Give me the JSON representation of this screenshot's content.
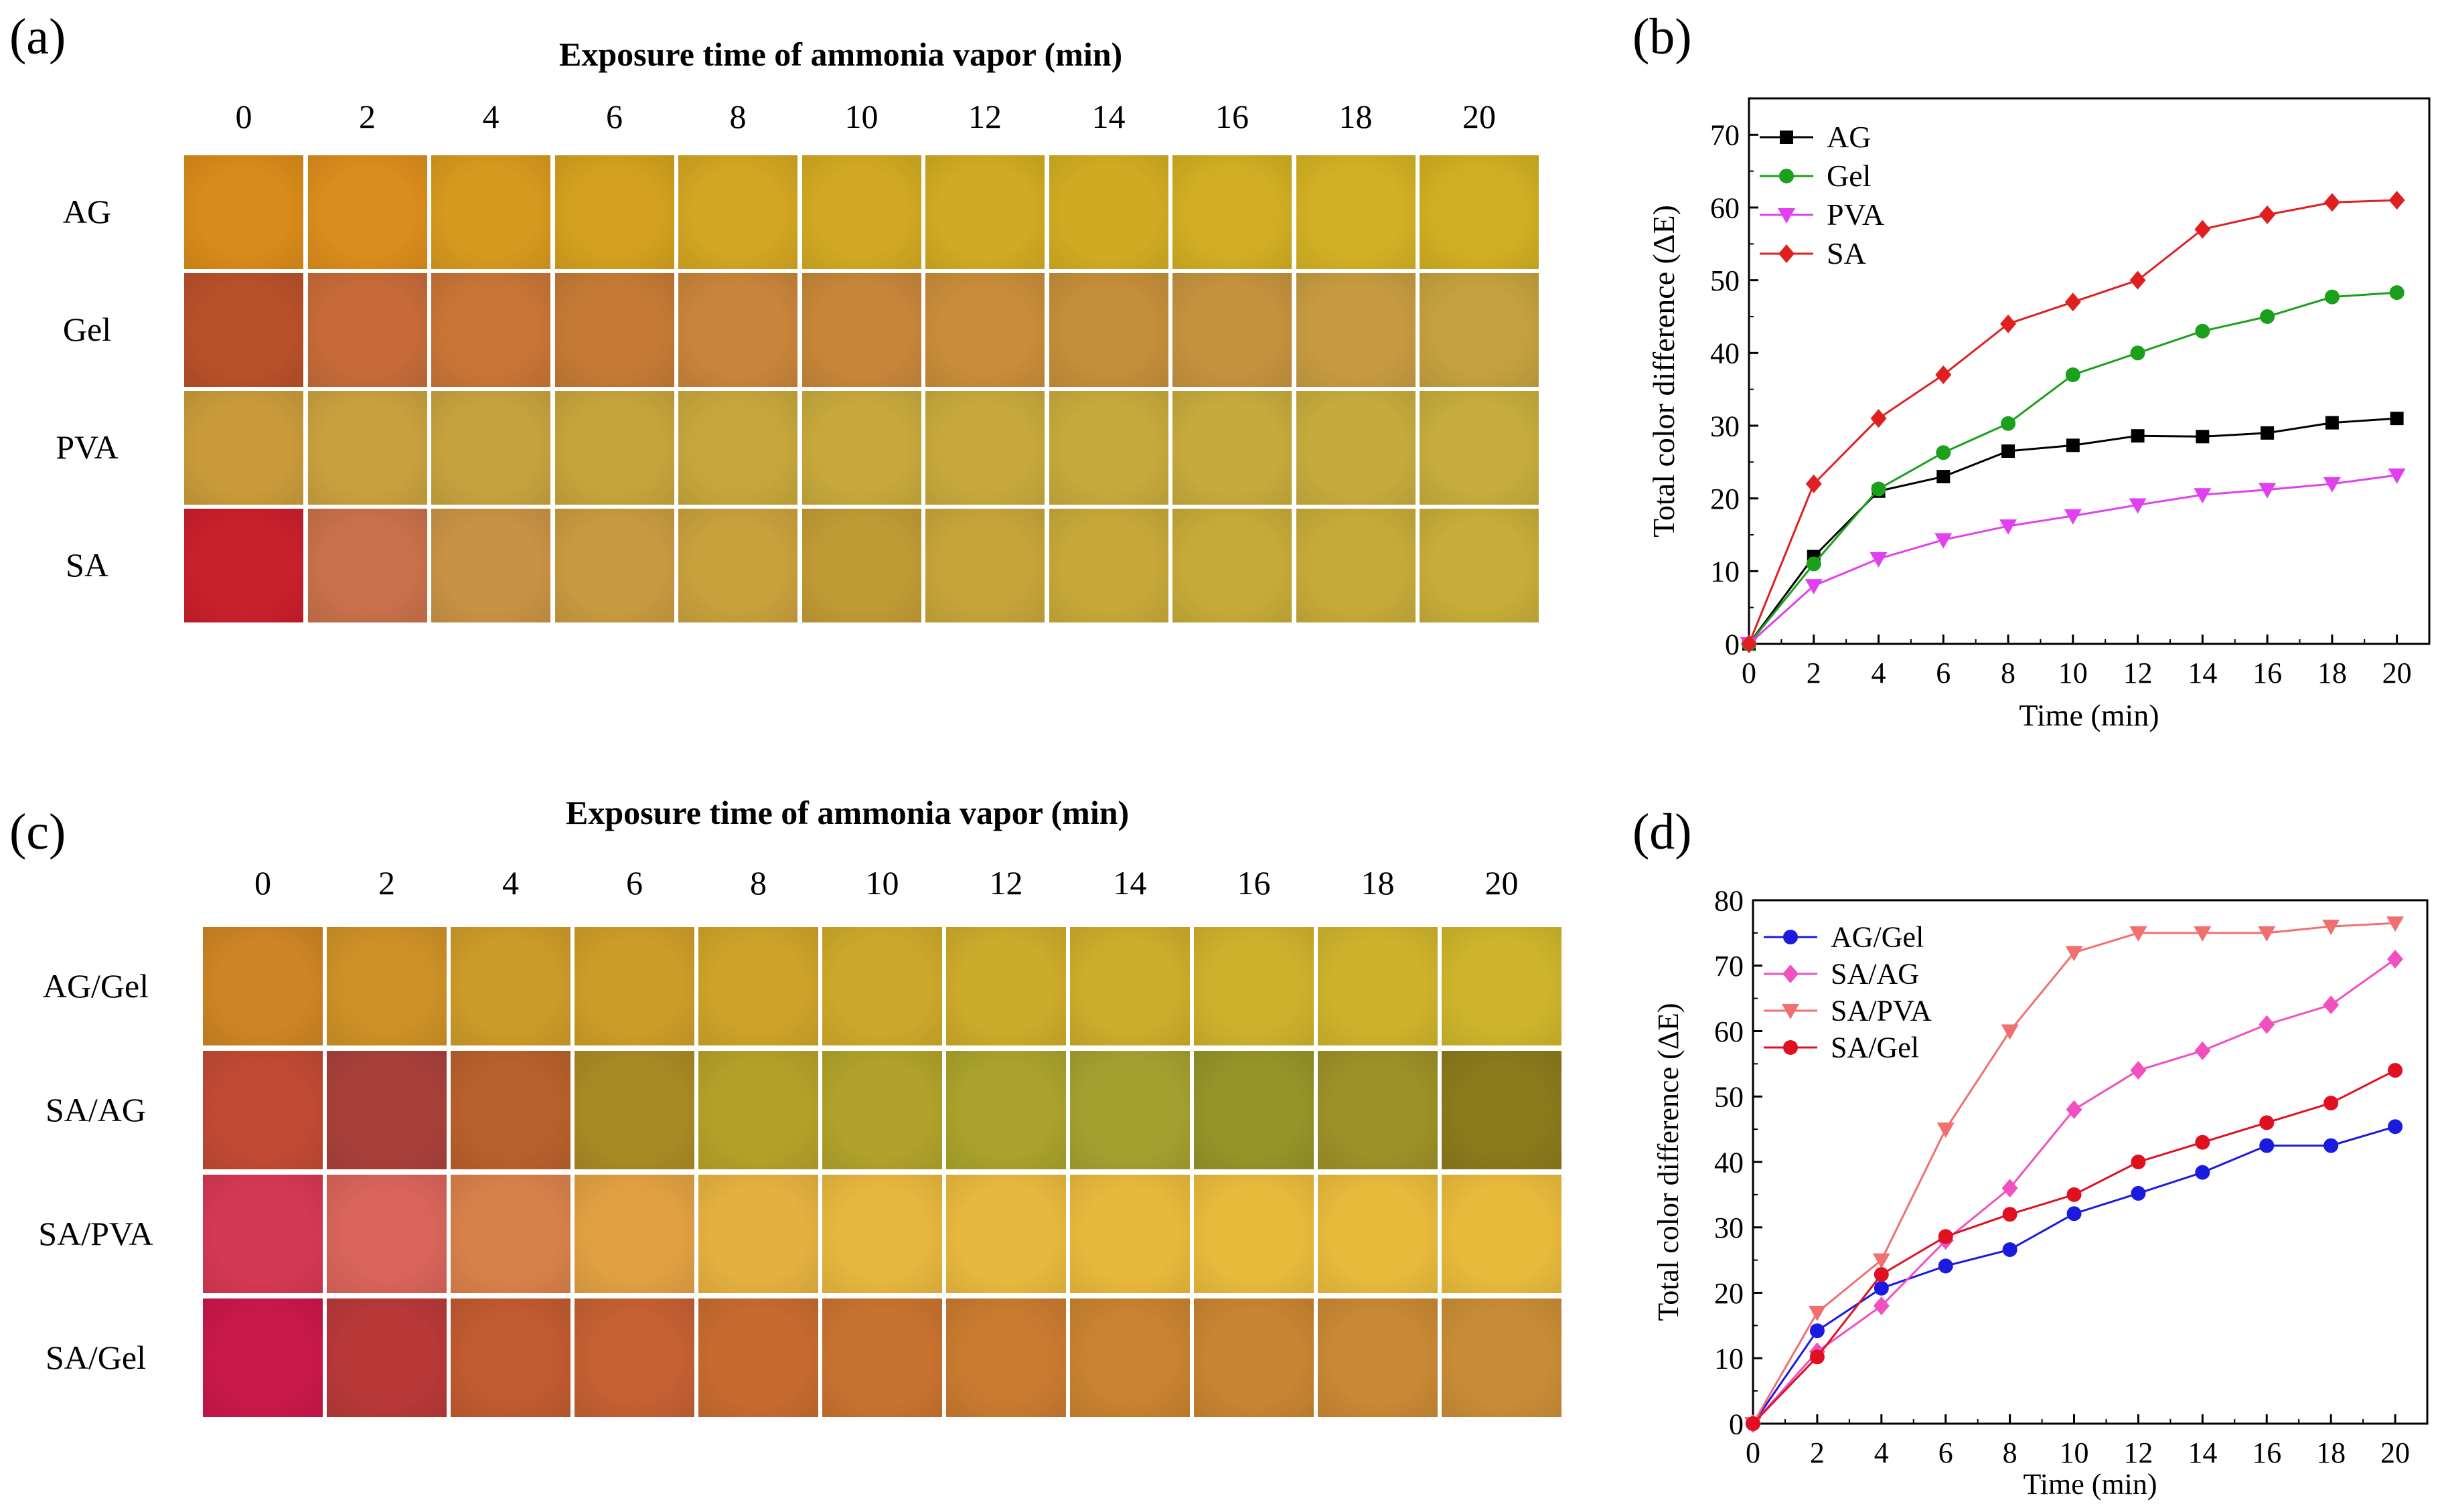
{
  "panels": {
    "a": "(a)",
    "b": "(b)",
    "c": "(c)",
    "d": "(d)"
  },
  "exposure_title": "Exposure time of ammonia vapor (min)",
  "times": [
    "0",
    "2",
    "4",
    "6",
    "8",
    "10",
    "12",
    "14",
    "16",
    "18",
    "20"
  ],
  "grid_a": {
    "rows": [
      {
        "label": "AG",
        "colors": [
          "#d88a1a",
          "#da8c1c",
          "#d6981e",
          "#d2a01e",
          "#d2a522",
          "#d0a822",
          "#d0aa22",
          "#d0ab22",
          "#d0ad22",
          "#d2b024",
          "#d0ae22"
        ]
      },
      {
        "label": "Gel",
        "colors": [
          "#b8502a",
          "#c66a38",
          "#c87436",
          "#c47a34",
          "#c8843a",
          "#c6863a",
          "#c88c3a",
          "#c48e3a",
          "#c4923e",
          "#c69a40",
          "#c4a03e"
        ]
      },
      {
        "label": "PVA",
        "colors": [
          "#c89a3a",
          "#c8a03e",
          "#c6a23e",
          "#c6a43c",
          "#c6a63c",
          "#c6a83c",
          "#c6a83c",
          "#c6a93c",
          "#c6aa3c",
          "#c6ab3c",
          "#c6ac3c"
        ]
      },
      {
        "label": "SA",
        "colors": [
          "#c8202c",
          "#c8704a",
          "#c89244",
          "#c89a40",
          "#c8a03c",
          "#c09a34",
          "#c6a43a",
          "#c6a838",
          "#c6aa38",
          "#c6aa38",
          "#c6ac38"
        ]
      }
    ]
  },
  "grid_c": {
    "rows": [
      {
        "label": "AG/Gel",
        "colors": [
          "#cc8424",
          "#cc9026",
          "#cc9a28",
          "#cc9c28",
          "#cca228",
          "#cca82a",
          "#ccaa2a",
          "#ccac2a",
          "#cdb02c",
          "#cdb22c",
          "#cdb42c"
        ]
      },
      {
        "label": "SA/AG",
        "colors": [
          "#c04a34",
          "#a8403a",
          "#b8602c",
          "#a88a24",
          "#b4a028",
          "#b0a22a",
          "#aaa22c",
          "#a4a030",
          "#949428",
          "#9c9028",
          "#8a7a1c"
        ]
      },
      {
        "label": "SA/PVA",
        "colors": [
          "#d43854",
          "#d8645a",
          "#d8804a",
          "#e0a042",
          "#e4b040",
          "#e6b63e",
          "#e8b83e",
          "#e8b83c",
          "#e8ba3c",
          "#e8ba3c",
          "#e8ba3c"
        ]
      },
      {
        "label": "SA/Gel",
        "colors": [
          "#c8184a",
          "#b83838",
          "#c05a30",
          "#c46032",
          "#c66a30",
          "#c87230",
          "#c87a30",
          "#c88230",
          "#c88432",
          "#c88834",
          "#c88c36"
        ]
      }
    ]
  },
  "chart_data": [
    {
      "type": "line",
      "title": "",
      "xlabel": "Time (min)",
      "ylabel": "Total color difference (ΔE)",
      "xlim": [
        0,
        21
      ],
      "ylim": [
        0,
        75
      ],
      "xticks": [
        0,
        2,
        4,
        6,
        8,
        10,
        12,
        14,
        16,
        18,
        20
      ],
      "yticks": [
        0,
        10,
        20,
        30,
        40,
        50,
        60,
        70
      ],
      "x": [
        0,
        2,
        4,
        6,
        8,
        10,
        12,
        14,
        16,
        18,
        20
      ],
      "legend_position": "top-left",
      "series": [
        {
          "name": "AG",
          "color": "#000000",
          "marker": "square",
          "values": [
            0,
            12,
            21,
            23,
            26.5,
            27.3,
            28.6,
            28.5,
            29,
            30.4,
            31
          ]
        },
        {
          "name": "Gel",
          "color": "#1aa01a",
          "marker": "circle",
          "values": [
            0,
            11,
            21.3,
            26.3,
            30.3,
            37,
            40,
            43,
            45,
            47.7,
            48.3
          ]
        },
        {
          "name": "PVA",
          "color": "#e040f0",
          "marker": "triangle-down",
          "values": [
            0,
            8,
            11.7,
            14.3,
            16.2,
            17.6,
            19.1,
            20.5,
            21.2,
            22,
            23.2
          ]
        },
        {
          "name": "SA",
          "color": "#e02020",
          "marker": "diamond",
          "values": [
            0,
            22,
            31,
            37,
            44,
            47,
            50,
            57,
            59,
            60.7,
            61
          ]
        }
      ]
    },
    {
      "type": "line",
      "title": "",
      "xlabel": "Time (min)",
      "ylabel": "Total color difference (ΔE)",
      "xlim": [
        0,
        21
      ],
      "ylim": [
        0,
        80
      ],
      "xticks": [
        0,
        2,
        4,
        6,
        8,
        10,
        12,
        14,
        16,
        18,
        20
      ],
      "yticks": [
        0,
        10,
        20,
        30,
        40,
        50,
        60,
        70,
        80
      ],
      "x": [
        0,
        2,
        4,
        6,
        8,
        10,
        12,
        14,
        16,
        18,
        20
      ],
      "legend_position": "top-left",
      "series": [
        {
          "name": "AG/Gel",
          "color": "#1a1ae0",
          "marker": "circle",
          "values": [
            0,
            14.2,
            20.7,
            24.1,
            26.6,
            32.1,
            35.2,
            38.4,
            42.5,
            42.5,
            45.4
          ]
        },
        {
          "name": "SA/AG",
          "color": "#f050c0",
          "marker": "diamond",
          "values": [
            0,
            11,
            18,
            28,
            36,
            48,
            54,
            57,
            61,
            64,
            71
          ]
        },
        {
          "name": "SA/PVA",
          "color": "#f07070",
          "marker": "triangle-down",
          "values": [
            0,
            17,
            25,
            45,
            60,
            72,
            75,
            75,
            75,
            76,
            76.5
          ]
        },
        {
          "name": "SA/Gel",
          "color": "#e01020",
          "marker": "circle",
          "values": [
            0,
            10.2,
            22.8,
            28.6,
            32,
            35,
            40,
            43,
            46,
            49,
            54
          ]
        }
      ]
    }
  ]
}
